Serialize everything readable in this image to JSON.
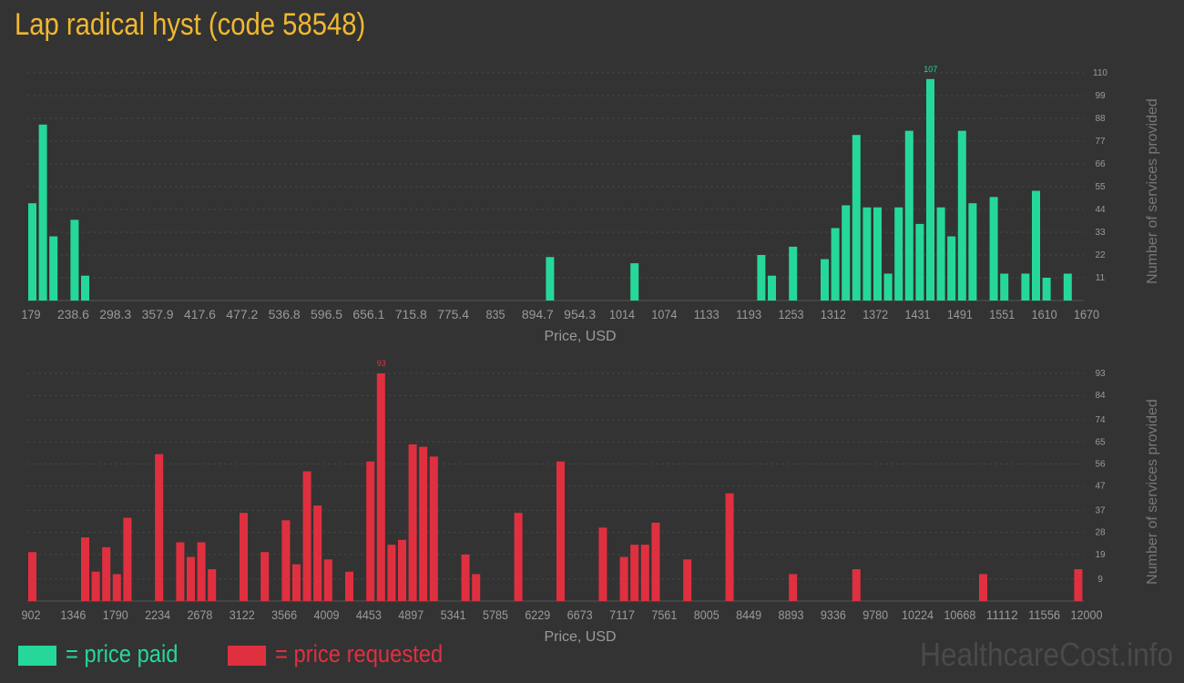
{
  "title": "Lap radical hyst (code 58548)",
  "colors": {
    "background": "#333333",
    "title": "#f0b830",
    "paid": "#25d899",
    "requested": "#e03040",
    "text": "#9a9a9a",
    "grid": "#444444"
  },
  "legend": {
    "paid_label": "= price paid",
    "requested_label": "= price requested"
  },
  "watermark": "HealthcareCost.info",
  "chart_data": [
    {
      "type": "bar",
      "series_name": "price paid",
      "xlabel": "Price, USD",
      "ylabel": "Number of services provided",
      "x_ticks": [
        "179",
        "238.6",
        "298.3",
        "357.9",
        "417.6",
        "477.2",
        "536.8",
        "596.5",
        "656.1",
        "715.8",
        "775.4",
        "835",
        "894.7",
        "954.3",
        "1014",
        "1074",
        "1133",
        "1193",
        "1253",
        "1312",
        "1372",
        "1431",
        "1491",
        "1551",
        "1610",
        "1670"
      ],
      "y_ticks": [
        11,
        22,
        33,
        44,
        55,
        66,
        77,
        88,
        99,
        110
      ],
      "ylim": [
        0,
        110
      ],
      "max_label": "107",
      "num_bins": 100,
      "bars": [
        {
          "bin": 0,
          "value": 47
        },
        {
          "bin": 1,
          "value": 85
        },
        {
          "bin": 2,
          "value": 31
        },
        {
          "bin": 4,
          "value": 39
        },
        {
          "bin": 5,
          "value": 12
        },
        {
          "bin": 49,
          "value": 21
        },
        {
          "bin": 57,
          "value": 18
        },
        {
          "bin": 69,
          "value": 22
        },
        {
          "bin": 70,
          "value": 12
        },
        {
          "bin": 72,
          "value": 26
        },
        {
          "bin": 75,
          "value": 20
        },
        {
          "bin": 76,
          "value": 35
        },
        {
          "bin": 77,
          "value": 46
        },
        {
          "bin": 78,
          "value": 80
        },
        {
          "bin": 79,
          "value": 45
        },
        {
          "bin": 80,
          "value": 45
        },
        {
          "bin": 81,
          "value": 13
        },
        {
          "bin": 82,
          "value": 45
        },
        {
          "bin": 83,
          "value": 82
        },
        {
          "bin": 84,
          "value": 37
        },
        {
          "bin": 85,
          "value": 107
        },
        {
          "bin": 86,
          "value": 45
        },
        {
          "bin": 87,
          "value": 31
        },
        {
          "bin": 88,
          "value": 82
        },
        {
          "bin": 89,
          "value": 47
        },
        {
          "bin": 91,
          "value": 50
        },
        {
          "bin": 92,
          "value": 13
        },
        {
          "bin": 94,
          "value": 13
        },
        {
          "bin": 95,
          "value": 53
        },
        {
          "bin": 96,
          "value": 11
        },
        {
          "bin": 98,
          "value": 13
        }
      ]
    },
    {
      "type": "bar",
      "series_name": "price requested",
      "xlabel": "Price, USD",
      "ylabel": "Number of services provided",
      "x_ticks": [
        "902",
        "1346",
        "1790",
        "2234",
        "2678",
        "3122",
        "3566",
        "4009",
        "4453",
        "4897",
        "5341",
        "5785",
        "6229",
        "6673",
        "7117",
        "7561",
        "8005",
        "8449",
        "8893",
        "9336",
        "9780",
        "10224",
        "10668",
        "11112",
        "11556",
        "12000"
      ],
      "y_ticks": [
        9,
        19,
        28,
        37,
        47,
        56,
        65,
        74,
        84,
        93
      ],
      "ylim": [
        0,
        93
      ],
      "max_label": "93",
      "num_bins": 100,
      "bars": [
        {
          "bin": 0,
          "value": 20
        },
        {
          "bin": 5,
          "value": 26
        },
        {
          "bin": 6,
          "value": 12
        },
        {
          "bin": 7,
          "value": 22
        },
        {
          "bin": 8,
          "value": 11
        },
        {
          "bin": 9,
          "value": 34
        },
        {
          "bin": 12,
          "value": 60
        },
        {
          "bin": 14,
          "value": 24
        },
        {
          "bin": 15,
          "value": 18
        },
        {
          "bin": 16,
          "value": 24
        },
        {
          "bin": 17,
          "value": 13
        },
        {
          "bin": 20,
          "value": 36
        },
        {
          "bin": 22,
          "value": 20
        },
        {
          "bin": 24,
          "value": 33
        },
        {
          "bin": 25,
          "value": 15
        },
        {
          "bin": 26,
          "value": 53
        },
        {
          "bin": 27,
          "value": 39
        },
        {
          "bin": 28,
          "value": 17
        },
        {
          "bin": 30,
          "value": 12
        },
        {
          "bin": 32,
          "value": 57
        },
        {
          "bin": 33,
          "value": 93
        },
        {
          "bin": 34,
          "value": 23
        },
        {
          "bin": 35,
          "value": 25
        },
        {
          "bin": 36,
          "value": 64
        },
        {
          "bin": 37,
          "value": 63
        },
        {
          "bin": 38,
          "value": 59
        },
        {
          "bin": 41,
          "value": 19
        },
        {
          "bin": 42,
          "value": 11
        },
        {
          "bin": 46,
          "value": 36
        },
        {
          "bin": 50,
          "value": 57
        },
        {
          "bin": 54,
          "value": 30
        },
        {
          "bin": 56,
          "value": 18
        },
        {
          "bin": 57,
          "value": 23
        },
        {
          "bin": 58,
          "value": 23
        },
        {
          "bin": 59,
          "value": 32
        },
        {
          "bin": 62,
          "value": 17
        },
        {
          "bin": 66,
          "value": 44
        },
        {
          "bin": 72,
          "value": 11
        },
        {
          "bin": 78,
          "value": 13
        },
        {
          "bin": 90,
          "value": 11
        },
        {
          "bin": 99,
          "value": 13
        }
      ]
    }
  ]
}
